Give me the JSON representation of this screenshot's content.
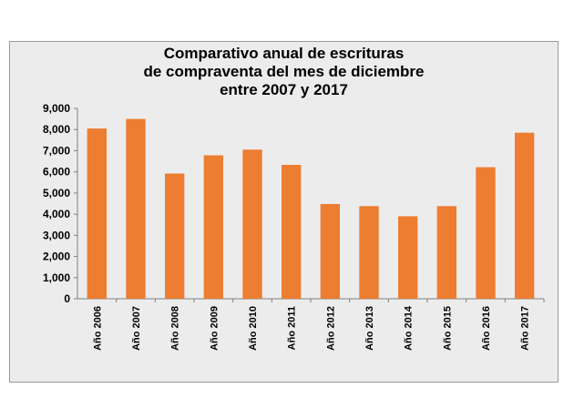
{
  "chart_data": {
    "type": "bar",
    "title_lines": [
      "Comparativo anual de escrituras",
      "de compraventa del mes de diciembre",
      "entre 2007 y 2017"
    ],
    "xlabel": "",
    "ylabel": "",
    "categories": [
      "Año 2006",
      "Año 2007",
      "Año 2008",
      "Año 2009",
      "Año 2010",
      "Año 2011",
      "Año 2012",
      "Año 2013",
      "Año 2014",
      "Año 2015",
      "Año 2016",
      "Año 2017"
    ],
    "values": [
      8050,
      8500,
      5920,
      6780,
      7050,
      6330,
      4480,
      4380,
      3900,
      4380,
      6220,
      7850
    ],
    "ylim": [
      0,
      9000
    ],
    "yticks": [
      0,
      1000,
      2000,
      3000,
      4000,
      5000,
      6000,
      7000,
      8000,
      9000
    ],
    "ytick_labels": [
      "0",
      "1,000",
      "2,000",
      "3,000",
      "4,000",
      "5,000",
      "6,000",
      "7,000",
      "8,000",
      "9,000"
    ],
    "grid": false,
    "legend": "none",
    "bar_color": "#ed7d31",
    "background_color": "#ececec"
  }
}
